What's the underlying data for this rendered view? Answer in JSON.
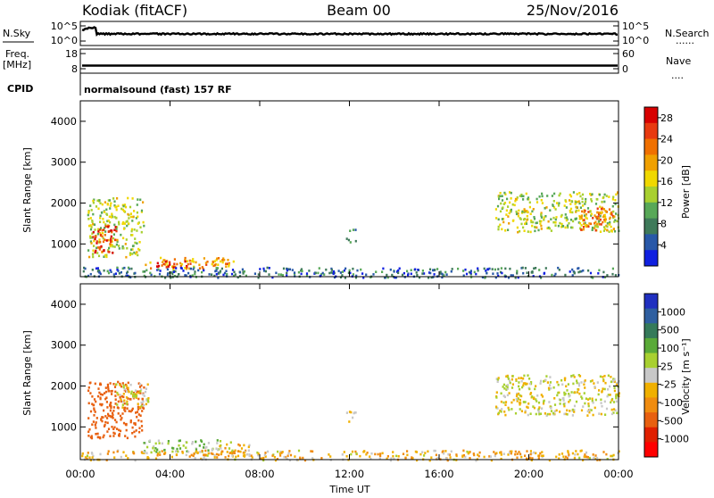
{
  "header": {
    "station": "Kodiak (fitACF)",
    "beam": "Beam 00",
    "date": "25/Nov/2016"
  },
  "status_panels": {
    "nsky_label": "N.Sky",
    "nsky_ticks": [
      "10^5",
      "10^0"
    ],
    "nsearch_label": "N.Search",
    "nsearch_ticks": [
      "10^5",
      "10^0"
    ],
    "freq_label_line1": "Freq.",
    "freq_label_line2": "[MHz]",
    "freq_ticks": [
      "18",
      "8"
    ],
    "nave_label": "Nave",
    "nave_ticks": [
      "60",
      "0"
    ],
    "cpid_label": "CPID",
    "cpid_value": "normalsound (fast) 157 RF",
    "dotted_marker": "......",
    "dotted_marker_short": "...."
  },
  "colors": {
    "power_scale": [
      "#1020e0",
      "#2858a8",
      "#3f7a5a",
      "#58a858",
      "#a8d030",
      "#f0d800",
      "#f0a000",
      "#f07000",
      "#e83a10",
      "#d80000"
    ],
    "velocity_scale": [
      "#2030c0",
      "#2f5fa0",
      "#357a5a",
      "#5aaa38",
      "#a8d030",
      "#c8c8c8",
      "#f0b000",
      "#f08c10",
      "#e86010",
      "#e02000",
      "#ff0000"
    ],
    "axis": "#000000",
    "background": "#ffffff"
  },
  "chart_data": [
    {
      "type": "heatmap",
      "panel": "power",
      "ylabel": "Slant Range [km]",
      "yticks": [
        "1000",
        "2000",
        "3000",
        "4000"
      ],
      "ylim": [
        200,
        4500
      ],
      "xlim_hours": [
        0,
        24
      ],
      "colorbar_label": "Power [dB]",
      "colorbar_ticks": [
        "4",
        "8",
        "12",
        "16",
        "20",
        "24",
        "28"
      ],
      "colorbar_range": [
        0,
        30
      ],
      "regions": [
        {
          "t0": 0.3,
          "t1": 2.8,
          "r0": 700,
          "r1": 2150,
          "value": 14
        },
        {
          "t0": 0.5,
          "t1": 1.6,
          "r0": 800,
          "r1": 1500,
          "value": 27
        },
        {
          "t0": 2.8,
          "t1": 6.8,
          "r0": 400,
          "r1": 700,
          "value": 20
        },
        {
          "t0": 3.3,
          "t1": 4.8,
          "r0": 450,
          "r1": 600,
          "value": 28
        },
        {
          "t0": 11.8,
          "t1": 12.3,
          "r0": 1000,
          "r1": 1400,
          "value": 8
        },
        {
          "t0": 18.5,
          "t1": 24.0,
          "r0": 1300,
          "r1": 2300,
          "value": 14
        },
        {
          "t0": 22.2,
          "t1": 24.0,
          "r0": 1350,
          "r1": 1900,
          "value": 22
        },
        {
          "t0": 0.0,
          "t1": 24.0,
          "r0": 200,
          "r1": 450,
          "value": 6
        }
      ]
    },
    {
      "type": "heatmap",
      "panel": "velocity",
      "ylabel": "Slant Range [km]",
      "yticks": [
        "1000",
        "2000",
        "3000",
        "4000"
      ],
      "ylim": [
        200,
        4500
      ],
      "xlim_hours": [
        0,
        24
      ],
      "xlabel": "Time UT",
      "xticks": [
        "00:00",
        "04:00",
        "08:00",
        "12:00",
        "16:00",
        "20:00",
        "00:00"
      ],
      "colorbar_label": "Velocity [m s⁻¹]",
      "colorbar_ticks": [
        "1000",
        "500",
        "100",
        "25",
        "-25",
        "-100",
        "-500",
        "-1000"
      ],
      "regions": [
        {
          "t0": 0.3,
          "t1": 2.8,
          "r0": 700,
          "r1": 2150,
          "value": -600
        },
        {
          "t0": 1.5,
          "t1": 3.0,
          "r0": 1500,
          "r1": 2150,
          "value": 0
        },
        {
          "t0": 2.8,
          "t1": 6.8,
          "r0": 400,
          "r1": 700,
          "value": 80
        },
        {
          "t0": 6.0,
          "t1": 7.5,
          "r0": 300,
          "r1": 600,
          "value": -80
        },
        {
          "t0": 11.8,
          "t1": 12.3,
          "r0": 1000,
          "r1": 1400,
          "value": 0
        },
        {
          "t0": 18.5,
          "t1": 24.0,
          "r0": 1300,
          "r1": 2300,
          "value": 0
        },
        {
          "t0": 0.0,
          "t1": 24.0,
          "r0": 200,
          "r1": 450,
          "value": -60
        }
      ]
    }
  ]
}
